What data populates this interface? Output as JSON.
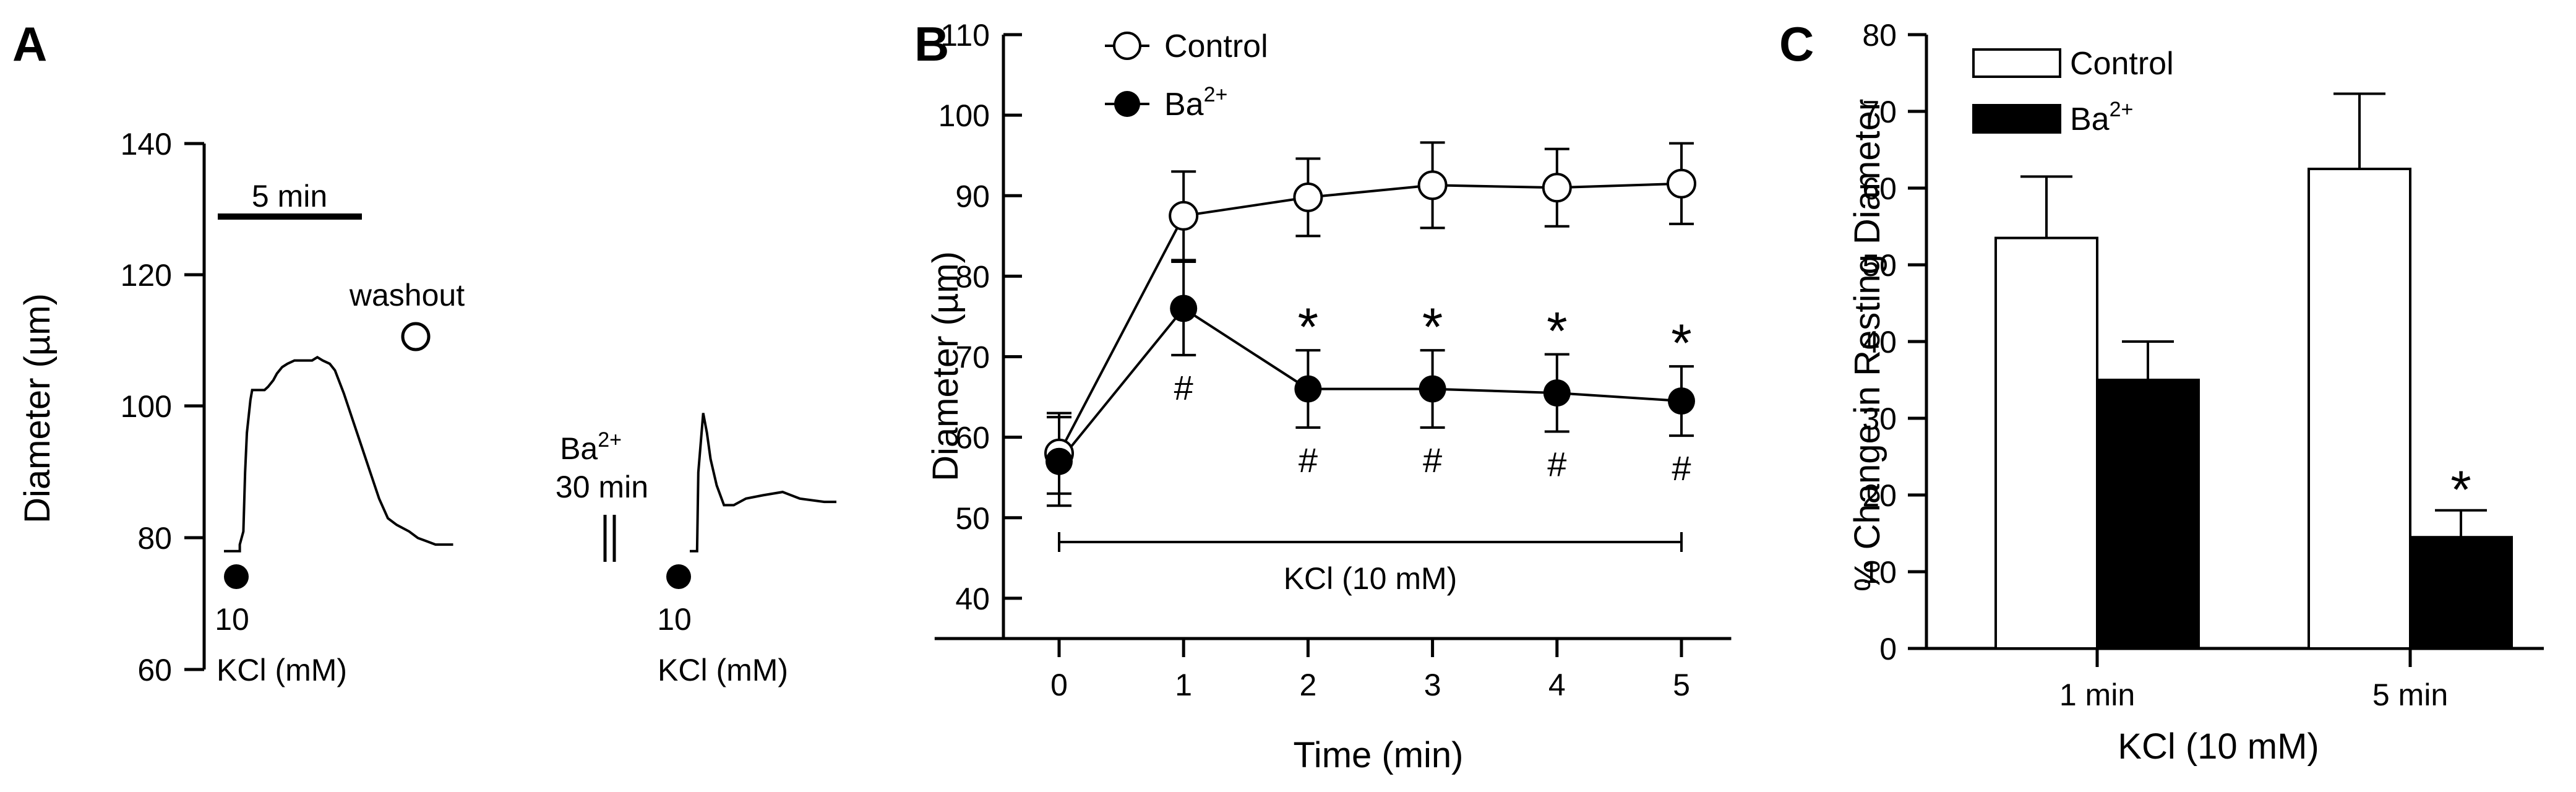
{
  "panels": [
    {
      "letter": "A"
    },
    {
      "letter": "B"
    },
    {
      "letter": "C"
    }
  ],
  "chart_data": [
    {
      "type": "line",
      "panel": "A",
      "ylabel": "Diameter (µm)",
      "yticks": [
        "140",
        "120",
        "100",
        "80",
        "60"
      ],
      "ylim": [
        60,
        140
      ],
      "scale_bar_label": "5 min",
      "annotations": {
        "washout": "washout",
        "ba_label": "Ba",
        "ba_sup": "2+",
        "ba_duration": "30 min",
        "dose_1": "10",
        "kcl_1": "KCl (mM)",
        "dose_2": "10",
        "kcl_2": "KCl (mM)"
      },
      "trace_1": [
        [
          0,
          78
        ],
        [
          0.9,
          78
        ],
        [
          0.9,
          79
        ],
        [
          1.0,
          80
        ],
        [
          1.1,
          81
        ],
        [
          1.2,
          90
        ],
        [
          1.3,
          96
        ],
        [
          1.5,
          101
        ],
        [
          1.6,
          102.5
        ],
        [
          2.0,
          102.5
        ],
        [
          2.3,
          102.5
        ],
        [
          2.5,
          103
        ],
        [
          2.8,
          104
        ],
        [
          3.0,
          105
        ],
        [
          3.3,
          106
        ],
        [
          3.6,
          106.5
        ],
        [
          4.0,
          107
        ],
        [
          4.5,
          107
        ],
        [
          5.0,
          107
        ],
        [
          5.3,
          107.5
        ],
        [
          5.6,
          107
        ],
        [
          6.0,
          106.5
        ],
        [
          6.3,
          105.5
        ],
        [
          6.8,
          102
        ],
        [
          7.3,
          98
        ],
        [
          7.8,
          94
        ],
        [
          8.3,
          90
        ],
        [
          8.8,
          86
        ],
        [
          9.3,
          83
        ],
        [
          9.8,
          82
        ],
        [
          10.5,
          81
        ],
        [
          11.0,
          80
        ],
        [
          11.5,
          79.5
        ],
        [
          12.0,
          79
        ],
        [
          13.0,
          79
        ]
      ],
      "trace_2": [
        [
          0,
          78
        ],
        [
          0.3,
          78
        ],
        [
          0.35,
          90
        ],
        [
          0.55,
          99
        ],
        [
          0.7,
          96
        ],
        [
          0.85,
          92
        ],
        [
          1.1,
          88
        ],
        [
          1.4,
          85
        ],
        [
          1.8,
          85
        ],
        [
          2.3,
          86
        ],
        [
          3.0,
          86.5
        ],
        [
          3.8,
          87
        ],
        [
          4.5,
          86
        ],
        [
          5.5,
          85.5
        ],
        [
          6.0,
          85.5
        ]
      ]
    },
    {
      "type": "line",
      "panel": "B",
      "xlabel": "Time (min)",
      "ylabel": "Diameter (µm)",
      "x": [
        0,
        1,
        2,
        3,
        4,
        5
      ],
      "xticks": [
        "0",
        "1",
        "2",
        "3",
        "4",
        "5"
      ],
      "yticks": [
        "110",
        "100",
        "90",
        "80",
        "70",
        "60",
        "50",
        "40"
      ],
      "xlim": [
        -1,
        5.4
      ],
      "ylim": [
        35,
        110
      ],
      "series": [
        {
          "name": "Control",
          "marker": "open-circle",
          "values": [
            58,
            87.5,
            89.8,
            91.3,
            91,
            91.5
          ],
          "err": [
            5,
            5.5,
            4.8,
            5.3,
            4.8,
            5
          ]
        },
        {
          "name": "Ba",
          "name_sup": "2+",
          "marker": "filled-circle",
          "values": [
            57,
            76,
            66,
            66,
            65.5,
            64.5
          ],
          "err": [
            5.5,
            5.8,
            4.8,
            4.8,
            4.8,
            4.3
          ]
        }
      ],
      "treatment_label": "KCl (10 mM)",
      "stars_at_x": [
        2,
        3,
        4,
        5
      ],
      "star_symbol": "*",
      "hash_at_x": [
        1,
        2,
        3,
        4,
        5
      ],
      "hash_symbol": "#"
    },
    {
      "type": "bar",
      "panel": "C",
      "xlabel": "KCl (10 mM)",
      "ylabel": "% Change in Resting Diameter",
      "categories": [
        "1 min",
        "5 min"
      ],
      "yticks": [
        "80",
        "70",
        "60",
        "50",
        "40",
        "30",
        "20",
        "10",
        "0"
      ],
      "ylim": [
        0,
        80
      ],
      "series": [
        {
          "name": "Control",
          "fill": "#ffffff",
          "values": [
            53.5,
            62.5
          ],
          "err": [
            8,
            9.8
          ]
        },
        {
          "name": "Ba",
          "name_sup": "2+",
          "fill": "#000000",
          "values": [
            35,
            14.5
          ],
          "err": [
            5,
            3.5
          ]
        }
      ],
      "star_symbol": "*",
      "star_category_index": 1
    }
  ]
}
